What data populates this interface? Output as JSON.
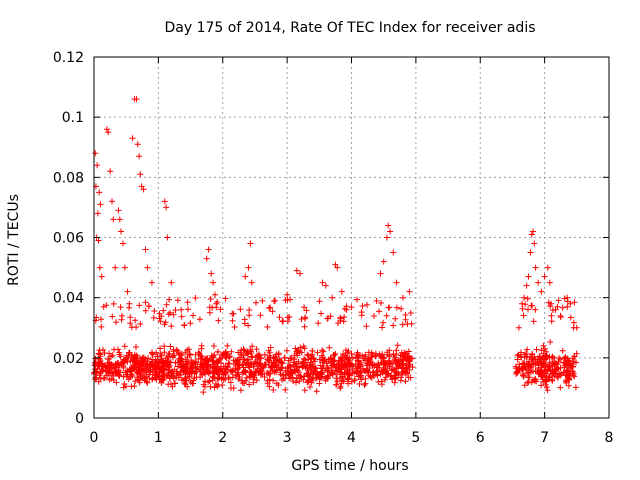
{
  "chart_data": {
    "type": "scatter",
    "title": "Day 175 of 2014, Rate Of TEC Index for receiver adis",
    "xlabel": "GPS time / hours",
    "ylabel": "ROTI / TECUs",
    "xlim": [
      0,
      8
    ],
    "ylim": [
      0,
      0.12
    ],
    "x_ticks": [
      0,
      1,
      2,
      3,
      4,
      5,
      6,
      7,
      8
    ],
    "x_tick_labels": [
      "0",
      "1",
      "2",
      "3",
      "4",
      "5",
      "6",
      "7",
      "8"
    ],
    "y_ticks": [
      0,
      0.02,
      0.04,
      0.06,
      0.08,
      0.1,
      0.12
    ],
    "y_tick_labels": [
      "0",
      "0.02",
      "0.04",
      "0.06",
      "0.08",
      "0.1",
      "0.12"
    ],
    "grid": true,
    "marker": "+",
    "color": "#ff0000",
    "series": [
      {
        "name": "ROTI",
        "segments": [
          {
            "x_start": 0.0,
            "x_end": 4.95,
            "typical_range": [
              0.005,
              0.03
            ]
          },
          {
            "x_start": 6.55,
            "x_end": 7.5,
            "typical_range": [
              0.005,
              0.03
            ]
          }
        ],
        "points": [
          [
            0.02,
            0.088
          ],
          [
            0.05,
            0.084
          ],
          [
            0.08,
            0.075
          ],
          [
            0.03,
            0.077
          ],
          [
            0.06,
            0.068
          ],
          [
            0.1,
            0.071
          ],
          [
            0.04,
            0.06
          ],
          [
            0.07,
            0.059
          ],
          [
            0.09,
            0.05
          ],
          [
            0.12,
            0.047
          ],
          [
            0.2,
            0.096
          ],
          [
            0.22,
            0.095
          ],
          [
            0.25,
            0.082
          ],
          [
            0.28,
            0.072
          ],
          [
            0.3,
            0.066
          ],
          [
            0.33,
            0.05
          ],
          [
            0.38,
            0.069
          ],
          [
            0.4,
            0.066
          ],
          [
            0.42,
            0.062
          ],
          [
            0.45,
            0.058
          ],
          [
            0.48,
            0.05
          ],
          [
            0.52,
            0.042
          ],
          [
            0.55,
            0.038
          ],
          [
            0.6,
            0.093
          ],
          [
            0.63,
            0.106
          ],
          [
            0.66,
            0.106
          ],
          [
            0.68,
            0.091
          ],
          [
            0.7,
            0.087
          ],
          [
            0.72,
            0.081
          ],
          [
            0.74,
            0.077
          ],
          [
            0.77,
            0.076
          ],
          [
            0.8,
            0.056
          ],
          [
            0.83,
            0.05
          ],
          [
            0.9,
            0.045
          ],
          [
            1.1,
            0.072
          ],
          [
            1.12,
            0.07
          ],
          [
            1.14,
            0.06
          ],
          [
            1.2,
            0.045
          ],
          [
            1.75,
            0.053
          ],
          [
            1.78,
            0.056
          ],
          [
            1.82,
            0.048
          ],
          [
            1.85,
            0.045
          ],
          [
            1.88,
            0.041
          ],
          [
            1.9,
            0.038
          ],
          [
            1.8,
            0.035
          ],
          [
            2.35,
            0.047
          ],
          [
            2.4,
            0.05
          ],
          [
            2.43,
            0.058
          ],
          [
            2.45,
            0.045
          ],
          [
            3.15,
            0.049
          ],
          [
            3.2,
            0.048
          ],
          [
            3.0,
            0.041
          ],
          [
            3.55,
            0.045
          ],
          [
            3.6,
            0.044
          ],
          [
            3.75,
            0.051
          ],
          [
            3.78,
            0.05
          ],
          [
            3.85,
            0.042
          ],
          [
            3.7,
            0.04
          ],
          [
            4.45,
            0.048
          ],
          [
            4.5,
            0.052
          ],
          [
            4.55,
            0.06
          ],
          [
            4.57,
            0.064
          ],
          [
            4.6,
            0.062
          ],
          [
            4.65,
            0.055
          ],
          [
            4.7,
            0.045
          ],
          [
            4.8,
            0.04
          ],
          [
            4.9,
            0.042
          ],
          [
            6.6,
            0.03
          ],
          [
            6.65,
            0.038
          ],
          [
            6.68,
            0.04
          ],
          [
            6.72,
            0.044
          ],
          [
            6.75,
            0.047
          ],
          [
            6.78,
            0.055
          ],
          [
            6.8,
            0.061
          ],
          [
            6.82,
            0.062
          ],
          [
            6.84,
            0.058
          ],
          [
            6.86,
            0.05
          ],
          [
            6.9,
            0.045
          ],
          [
            6.95,
            0.042
          ],
          [
            7.0,
            0.047
          ],
          [
            7.05,
            0.05
          ],
          [
            7.08,
            0.045
          ],
          [
            7.1,
            0.038
          ],
          [
            7.35,
            0.04
          ],
          [
            7.4,
            0.038
          ],
          [
            7.45,
            0.03
          ]
        ]
      }
    ]
  }
}
